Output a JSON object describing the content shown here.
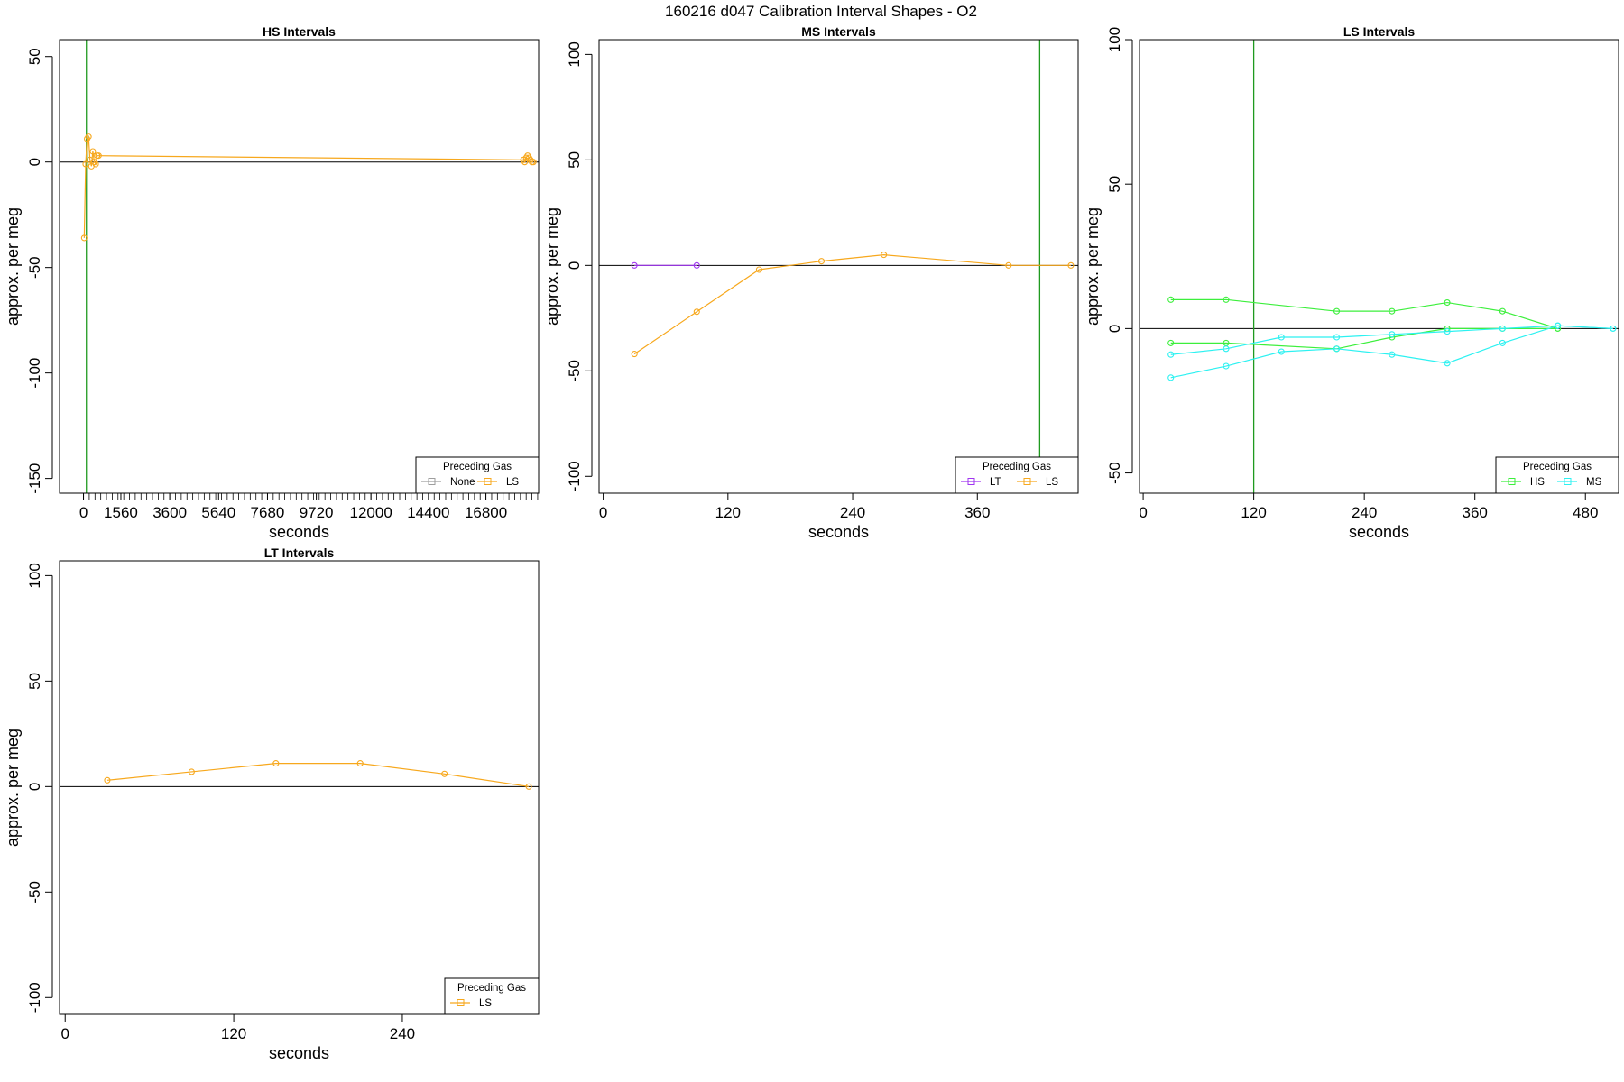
{
  "page": {
    "title": "160216   d047   Calibration Interval Shapes - O2"
  },
  "colors": {
    "none": "#9e9e9e",
    "LS": "#f7a81d",
    "LT": "#a035f0",
    "HS": "#3cef3c",
    "MS": "#2cf1f1",
    "vline": "#1f9a1f",
    "zero": "#000000"
  },
  "chart_data": [
    {
      "type": "line",
      "title": "HS Intervals",
      "xlabel": "seconds",
      "ylabel": "approx. per meg",
      "xlim": [
        -1000,
        19000
      ],
      "ylim": [
        -157,
        58
      ],
      "yticks": [
        50,
        0,
        -50,
        -100,
        -150
      ],
      "xticks": [
        0,
        1560,
        3600,
        5640,
        7680,
        9720,
        12000,
        14400,
        16800
      ],
      "xtick_labels": [
        "0",
        "1560",
        "3600",
        "5640",
        "7680",
        "9720",
        "12000",
        "14400",
        "16800"
      ],
      "minor_xticks_range": [
        0,
        18960,
        240
      ],
      "vline": 120,
      "legend": {
        "title": "Preceding Gas",
        "entries": [
          "None",
          "LS"
        ],
        "keys": [
          "none",
          "LS"
        ]
      },
      "series": [
        {
          "name": "LS",
          "color_key": "LS",
          "x": [
            30,
            90,
            150,
            210,
            270,
            330,
            390,
            450,
            510,
            570,
            630,
            18360,
            18420,
            18480,
            18540,
            18600,
            18660,
            18720,
            18780
          ],
          "values": [
            -36,
            -1,
            11,
            12,
            1,
            -2,
            5,
            0,
            -1,
            3,
            3,
            1,
            0,
            2,
            3,
            2,
            1,
            0,
            0
          ]
        }
      ]
    },
    {
      "type": "line",
      "title": "MS Intervals",
      "xlabel": "seconds",
      "ylabel": "approx. per meg",
      "xlim": [
        -4,
        457
      ],
      "ylim": [
        -108,
        107
      ],
      "yticks": [
        100,
        50,
        0,
        -50,
        -100
      ],
      "xticks": [
        0,
        120,
        240,
        360
      ],
      "xtick_labels": [
        "0",
        "120",
        "240",
        "360"
      ],
      "vline": 420,
      "legend": {
        "title": "Preceding Gas",
        "entries": [
          "LT",
          "LS"
        ],
        "keys": [
          "LT",
          "LS"
        ]
      },
      "series": [
        {
          "name": "LT",
          "color_key": "LT",
          "x": [
            30,
            90
          ],
          "values": [
            0,
            0
          ]
        },
        {
          "name": "LS",
          "color_key": "LS",
          "x": [
            30,
            90,
            150,
            210,
            270,
            390,
            450
          ],
          "values": [
            -42,
            -22,
            -2,
            2,
            5,
            0,
            0
          ]
        }
      ]
    },
    {
      "type": "line",
      "title": "LS Intervals",
      "xlabel": "seconds",
      "ylabel": "approx. per meg",
      "xlim": [
        -4,
        516
      ],
      "ylim": [
        -57,
        100
      ],
      "yticks": [
        100,
        50,
        0,
        -50
      ],
      "xticks": [
        0,
        120,
        240,
        360,
        480
      ],
      "xtick_labels": [
        "0",
        "120",
        "240",
        "360",
        "480"
      ],
      "vline": 120,
      "legend": {
        "title": "Preceding Gas",
        "entries": [
          "HS",
          "MS"
        ],
        "keys": [
          "HS",
          "MS"
        ]
      },
      "series": [
        {
          "name": "HS",
          "color_key": "HS",
          "x": [
            30,
            90,
            210,
            270,
            330,
            390,
            450
          ],
          "values": [
            10,
            10,
            6,
            6,
            9,
            6,
            0
          ]
        },
        {
          "name": "HS",
          "color_key": "HS",
          "x": [
            30,
            90,
            210,
            270,
            330,
            390,
            450
          ],
          "values": [
            -5,
            -5,
            -7,
            -3,
            0,
            0,
            0
          ]
        },
        {
          "name": "MS",
          "color_key": "MS",
          "x": [
            30,
            90,
            150,
            210,
            270,
            330,
            390,
            450,
            510
          ],
          "values": [
            -9,
            -7,
            -3,
            -3,
            -2,
            -1,
            0,
            1,
            0
          ]
        },
        {
          "name": "MS",
          "color_key": "MS",
          "x": [
            30,
            90,
            150,
            210,
            270,
            330,
            390,
            450,
            510
          ],
          "values": [
            -17,
            -13,
            -8,
            -7,
            -9,
            -12,
            -5,
            1,
            0
          ]
        }
      ]
    },
    {
      "type": "line",
      "title": "LT Intervals",
      "xlabel": "seconds",
      "ylabel": "approx. per meg",
      "xlim": [
        -4,
        337
      ],
      "ylim": [
        -108,
        107
      ],
      "yticks": [
        100,
        50,
        0,
        -50,
        -100
      ],
      "xticks": [
        0,
        120,
        240
      ],
      "xtick_labels": [
        "0",
        "120",
        "240"
      ],
      "vline": null,
      "legend": {
        "title": "Preceding Gas",
        "entries": [
          "LS"
        ],
        "keys": [
          "LS"
        ]
      },
      "series": [
        {
          "name": "LS",
          "color_key": "LS",
          "x": [
            30,
            90,
            150,
            210,
            270,
            330
          ],
          "values": [
            3,
            7,
            11,
            11,
            6,
            0
          ]
        }
      ]
    }
  ]
}
